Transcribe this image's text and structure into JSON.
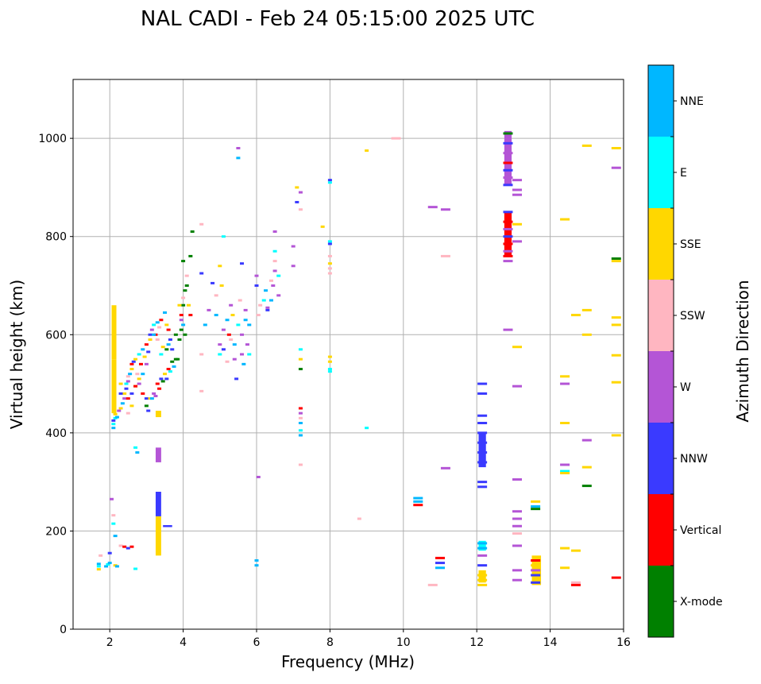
{
  "chart_data": {
    "type": "scatter",
    "title": "NAL CADI - Feb 24 05:15:00 2025 UTC",
    "xlabel": "Frequency (MHz)",
    "ylabel": "Virtual height (km)",
    "xlim": [
      1,
      16
    ],
    "ylim": [
      0,
      1120
    ],
    "xticks": [
      "2",
      "4",
      "6",
      "8",
      "10",
      "12",
      "14",
      "16"
    ],
    "yticks": [
      "0",
      "200",
      "400",
      "600",
      "800",
      "1000"
    ],
    "grid": true,
    "colorbar": {
      "label": "Azimuth Direction",
      "categories": [
        {
          "name": "X-mode",
          "color": "#008000"
        },
        {
          "name": "Vertical",
          "color": "#ff0000"
        },
        {
          "name": "NNW",
          "color": "#3a3aff"
        },
        {
          "name": "W",
          "color": "#b455d6"
        },
        {
          "name": "SSW",
          "color": "#ffb6c1"
        },
        {
          "name": "SSE",
          "color": "#ffd700"
        },
        {
          "name": "E",
          "color": "#00ffff"
        },
        {
          "name": "NNE",
          "color": "#00b7ff"
        }
      ]
    },
    "points": [
      [
        1.7,
        133,
        "NNE"
      ],
      [
        1.7,
        128,
        "E"
      ],
      [
        1.7,
        122,
        "SSE"
      ],
      [
        1.75,
        150,
        "SSW"
      ],
      [
        1.9,
        128,
        "NNE"
      ],
      [
        1.95,
        132,
        "E"
      ],
      [
        2.0,
        135,
        "NNE"
      ],
      [
        2.0,
        155,
        "NNW"
      ],
      [
        2.05,
        265,
        "W"
      ],
      [
        2.1,
        232,
        "SSW"
      ],
      [
        2.1,
        215,
        "E"
      ],
      [
        2.15,
        190,
        "NNE"
      ],
      [
        2.15,
        130,
        "SSE"
      ],
      [
        2.2,
        128,
        "NNE"
      ],
      [
        2.3,
        170,
        "SSW"
      ],
      [
        2.4,
        168,
        "Vertical"
      ],
      [
        2.5,
        165,
        "NNW"
      ],
      [
        2.6,
        168,
        "Vertical"
      ],
      [
        2.7,
        123,
        "E"
      ],
      [
        2.7,
        370,
        "E"
      ],
      [
        2.75,
        360,
        "NNE"
      ],
      [
        2.1,
        410,
        "NNE"
      ],
      [
        2.1,
        418,
        "E"
      ],
      [
        2.1,
        425,
        "NNW"
      ],
      [
        2.15,
        430,
        "E"
      ],
      [
        2.15,
        438,
        "SSE"
      ],
      [
        2.2,
        432,
        "NNE"
      ],
      [
        2.25,
        445,
        "W"
      ],
      [
        2.3,
        450,
        "SSE"
      ],
      [
        2.35,
        460,
        "NNE"
      ],
      [
        2.4,
        470,
        "W"
      ],
      [
        2.4,
        480,
        "SSE"
      ],
      [
        2.45,
        490,
        "NNW"
      ],
      [
        2.45,
        500,
        "E"
      ],
      [
        2.5,
        505,
        "W"
      ],
      [
        2.5,
        515,
        "SSW"
      ],
      [
        2.55,
        520,
        "NNE"
      ],
      [
        2.6,
        530,
        "SSE"
      ],
      [
        2.6,
        540,
        "Vertical"
      ],
      [
        2.65,
        545,
        "NNW"
      ],
      [
        2.7,
        550,
        "SSE"
      ],
      [
        2.75,
        520,
        "SSW"
      ],
      [
        2.8,
        560,
        "E"
      ],
      [
        2.85,
        540,
        "Vertical"
      ],
      [
        2.9,
        570,
        "NNE"
      ],
      [
        2.95,
        555,
        "SSE"
      ],
      [
        3.0,
        580,
        "Vertical"
      ],
      [
        3.05,
        565,
        "NNW"
      ],
      [
        3.1,
        590,
        "SSE"
      ],
      [
        3.1,
        600,
        "NNW"
      ],
      [
        3.15,
        610,
        "W"
      ],
      [
        3.2,
        620,
        "E"
      ],
      [
        3.25,
        600,
        "Vertical"
      ],
      [
        3.3,
        625,
        "NNE"
      ],
      [
        3.35,
        615,
        "SSW"
      ],
      [
        3.4,
        630,
        "Vertical"
      ],
      [
        3.5,
        645,
        "NNE"
      ],
      [
        3.55,
        620,
        "SSE"
      ],
      [
        3.6,
        610,
        "Vertical"
      ],
      [
        3.65,
        590,
        "NNW"
      ],
      [
        2.5,
        470,
        "Vertical"
      ],
      [
        2.6,
        480,
        "NNW"
      ],
      [
        2.7,
        495,
        "SSE"
      ],
      [
        2.8,
        500,
        "W"
      ],
      [
        2.9,
        480,
        "Vertical"
      ],
      [
        3.0,
        470,
        "NNW"
      ],
      [
        3.1,
        470,
        "SSE"
      ],
      [
        3.2,
        480,
        "W"
      ],
      [
        3.3,
        500,
        "Vertical"
      ],
      [
        3.4,
        510,
        "NNW"
      ],
      [
        3.5,
        520,
        "SSE"
      ],
      [
        3.6,
        530,
        "Vertical"
      ],
      [
        3.7,
        545,
        "X-mode"
      ],
      [
        3.7,
        570,
        "NNW"
      ],
      [
        3.8,
        600,
        "X-mode"
      ],
      [
        3.8,
        550,
        "X-mode"
      ],
      [
        3.6,
        580,
        "NNE"
      ],
      [
        3.4,
        560,
        "E"
      ],
      [
        3.3,
        590,
        "SSW"
      ],
      [
        3.2,
        600,
        "NNE"
      ],
      [
        3.0,
        540,
        "W"
      ],
      [
        2.9,
        520,
        "NNE"
      ],
      [
        2.8,
        510,
        "SSE"
      ],
      [
        2.7,
        495,
        "Vertical"
      ],
      [
        2.6,
        455,
        "SSE"
      ],
      [
        2.5,
        440,
        "SSW"
      ],
      [
        2.3,
        480,
        "NNW"
      ],
      [
        2.3,
        500,
        "SSE"
      ],
      [
        3.0,
        455,
        "X-mode"
      ],
      [
        3.05,
        445,
        "NNW"
      ],
      [
        3.15,
        470,
        "NNE"
      ],
      [
        3.25,
        475,
        "W"
      ],
      [
        3.35,
        490,
        "Vertical"
      ],
      [
        3.45,
        505,
        "X-mode"
      ],
      [
        3.55,
        510,
        "NNW"
      ],
      [
        3.65,
        525,
        "E"
      ],
      [
        3.75,
        535,
        "NNE"
      ],
      [
        3.85,
        550,
        "X-mode"
      ],
      [
        3.55,
        570,
        "X-mode"
      ],
      [
        3.45,
        575,
        "SSE"
      ],
      [
        3.9,
        590,
        "X-mode"
      ],
      [
        3.95,
        610,
        "X-mode"
      ],
      [
        3.95,
        640,
        "Vertical"
      ],
      [
        4.0,
        660,
        "X-mode"
      ],
      [
        4.0,
        675,
        "SSW"
      ],
      [
        4.05,
        690,
        "X-mode"
      ],
      [
        4.1,
        700,
        "X-mode"
      ],
      [
        4.15,
        660,
        "SSE"
      ],
      [
        4.2,
        640,
        "Vertical"
      ],
      [
        4.1,
        720,
        "SSW"
      ],
      [
        4.0,
        750,
        "X-mode"
      ],
      [
        4.2,
        760,
        "X-mode"
      ],
      [
        4.25,
        810,
        "X-mode"
      ],
      [
        3.95,
        630,
        "W"
      ],
      [
        3.9,
        660,
        "SSE"
      ],
      [
        4.0,
        620,
        "NNE"
      ],
      [
        4.05,
        600,
        "X-mode"
      ],
      [
        4.5,
        560,
        "SSW"
      ],
      [
        4.5,
        485,
        "SSW"
      ],
      [
        4.5,
        825,
        "SSW"
      ],
      [
        4.5,
        725,
        "NNW"
      ],
      [
        4.6,
        620,
        "NNE"
      ],
      [
        4.7,
        650,
        "W"
      ],
      [
        4.8,
        705,
        "NNW"
      ],
      [
        4.9,
        680,
        "SSW"
      ],
      [
        4.9,
        640,
        "NNE"
      ],
      [
        5.0,
        580,
        "W"
      ],
      [
        5.0,
        560,
        "E"
      ],
      [
        5.0,
        740,
        "SSE"
      ],
      [
        5.05,
        700,
        "SSE"
      ],
      [
        5.1,
        800,
        "E"
      ],
      [
        5.1,
        610,
        "W"
      ],
      [
        5.2,
        630,
        "NNE"
      ],
      [
        5.2,
        545,
        "SSW"
      ],
      [
        5.25,
        600,
        "Vertical"
      ],
      [
        5.3,
        660,
        "W"
      ],
      [
        5.35,
        640,
        "SSE"
      ],
      [
        5.4,
        580,
        "NNE"
      ],
      [
        5.4,
        550,
        "W"
      ],
      [
        5.45,
        510,
        "NNW"
      ],
      [
        5.5,
        620,
        "E"
      ],
      [
        5.55,
        670,
        "SSW"
      ],
      [
        5.6,
        560,
        "W"
      ],
      [
        5.6,
        600,
        "W"
      ],
      [
        5.65,
        540,
        "NNE"
      ],
      [
        5.7,
        630,
        "NNE"
      ],
      [
        5.7,
        650,
        "W"
      ],
      [
        5.75,
        580,
        "W"
      ],
      [
        5.8,
        620,
        "NNE"
      ],
      [
        5.8,
        560,
        "E"
      ],
      [
        5.5,
        960,
        "NNE"
      ],
      [
        5.5,
        980,
        "W"
      ],
      [
        5.6,
        745,
        "NNW"
      ],
      [
        5.3,
        590,
        "SSW"
      ],
      [
        5.1,
        570,
        "NNW"
      ],
      [
        6.0,
        720,
        "W"
      ],
      [
        6.0,
        700,
        "NNW"
      ],
      [
        6.05,
        640,
        "SSW"
      ],
      [
        6.05,
        310,
        "W"
      ],
      [
        6.0,
        140,
        "NNE"
      ],
      [
        6.0,
        130,
        "NNE"
      ],
      [
        6.1,
        660,
        "SSW"
      ],
      [
        6.2,
        670,
        "E"
      ],
      [
        6.25,
        690,
        "NNE"
      ],
      [
        6.3,
        650,
        "NNW"
      ],
      [
        6.4,
        670,
        "NNE"
      ],
      [
        6.45,
        700,
        "W"
      ],
      [
        6.5,
        730,
        "W"
      ],
      [
        6.5,
        750,
        "SSW"
      ],
      [
        6.5,
        770,
        "E"
      ],
      [
        6.6,
        720,
        "E"
      ],
      [
        6.6,
        680,
        "W"
      ],
      [
        6.5,
        810,
        "W"
      ],
      [
        6.3,
        655,
        "W"
      ],
      [
        6.4,
        710,
        "SSW"
      ],
      [
        7.0,
        740,
        "W"
      ],
      [
        7.0,
        780,
        "W"
      ],
      [
        7.1,
        870,
        "NNW"
      ],
      [
        7.1,
        900,
        "SSE"
      ],
      [
        7.2,
        855,
        "SSW"
      ],
      [
        7.2,
        890,
        "W"
      ],
      [
        7.2,
        570,
        "E"
      ],
      [
        7.2,
        550,
        "SSE"
      ],
      [
        7.2,
        530,
        "X-mode"
      ],
      [
        7.2,
        450,
        "Vertical"
      ],
      [
        7.2,
        440,
        "W"
      ],
      [
        7.2,
        430,
        "SSW"
      ],
      [
        7.2,
        420,
        "NNE"
      ],
      [
        7.2,
        405,
        "E"
      ],
      [
        7.2,
        395,
        "NNE"
      ],
      [
        7.2,
        335,
        "SSW"
      ],
      [
        7.8,
        820,
        "SSE"
      ],
      [
        8.0,
        915,
        "NNW"
      ],
      [
        8.0,
        910,
        "E"
      ],
      [
        8.0,
        790,
        "E"
      ],
      [
        8.0,
        785,
        "NNW"
      ],
      [
        8.0,
        760,
        "SSW"
      ],
      [
        8.0,
        745,
        "SSE"
      ],
      [
        8.0,
        735,
        "SSW"
      ],
      [
        8.0,
        725,
        "SSW"
      ],
      [
        8.0,
        555,
        "SSE"
      ],
      [
        8.0,
        545,
        "SSE"
      ],
      [
        8.0,
        530,
        "E"
      ],
      [
        8.0,
        525,
        "E"
      ],
      [
        9.0,
        975,
        "SSE"
      ],
      [
        9.0,
        410,
        "E"
      ],
      [
        8.8,
        225,
        "SSW"
      ],
      [
        9.8,
        1000,
        "SSW"
      ],
      [
        10.4,
        267,
        "NNE"
      ],
      [
        10.4,
        260,
        "NNE"
      ],
      [
        10.4,
        253,
        "Vertical"
      ],
      [
        10.8,
        860,
        "W"
      ],
      [
        10.8,
        90,
        "SSW"
      ],
      [
        11.0,
        145,
        "Vertical"
      ],
      [
        11.0,
        135,
        "NNW"
      ],
      [
        11.0,
        125,
        "NNE"
      ],
      [
        11.15,
        855,
        "W"
      ],
      [
        11.15,
        760,
        "SSW"
      ],
      [
        11.15,
        328,
        "W"
      ],
      [
        12.15,
        500,
        "NNW"
      ],
      [
        12.15,
        480,
        "NNW"
      ],
      [
        12.15,
        435,
        "NNW"
      ],
      [
        12.15,
        420,
        "NNW"
      ],
      [
        12.15,
        400,
        "NNW"
      ],
      [
        12.15,
        380,
        "NNW"
      ],
      [
        12.15,
        360,
        "NNW"
      ],
      [
        12.15,
        340,
        "NNW"
      ],
      [
        12.15,
        300,
        "NNW"
      ],
      [
        12.15,
        290,
        "NNW"
      ],
      [
        12.15,
        175,
        "NNE"
      ],
      [
        12.15,
        165,
        "NNE"
      ],
      [
        12.15,
        150,
        "W"
      ],
      [
        12.15,
        130,
        "NNW"
      ],
      [
        12.15,
        110,
        "SSE"
      ],
      [
        12.15,
        100,
        "SSE"
      ],
      [
        12.15,
        90,
        "SSE"
      ],
      [
        12.85,
        1010,
        "X-mode"
      ],
      [
        12.85,
        990,
        "NNW"
      ],
      [
        12.85,
        970,
        "W"
      ],
      [
        12.85,
        950,
        "Vertical"
      ],
      [
        12.85,
        935,
        "NNW"
      ],
      [
        12.85,
        920,
        "W"
      ],
      [
        12.85,
        905,
        "NNW"
      ],
      [
        12.85,
        850,
        "NNW"
      ],
      [
        12.85,
        830,
        "Vertical"
      ],
      [
        12.85,
        815,
        "W"
      ],
      [
        12.85,
        800,
        "NNW"
      ],
      [
        12.85,
        785,
        "Vertical"
      ],
      [
        12.85,
        770,
        "W"
      ],
      [
        12.85,
        760,
        "Vertical"
      ],
      [
        12.85,
        750,
        "W"
      ],
      [
        12.85,
        610,
        "W"
      ],
      [
        13.1,
        915,
        "W"
      ],
      [
        13.1,
        895,
        "W"
      ],
      [
        13.1,
        885,
        "W"
      ],
      [
        13.1,
        825,
        "SSE"
      ],
      [
        13.1,
        790,
        "W"
      ],
      [
        13.1,
        575,
        "SSE"
      ],
      [
        13.1,
        495,
        "W"
      ],
      [
        13.1,
        305,
        "W"
      ],
      [
        13.1,
        240,
        "W"
      ],
      [
        13.1,
        225,
        "W"
      ],
      [
        13.1,
        210,
        "W"
      ],
      [
        13.1,
        195,
        "SSW"
      ],
      [
        13.1,
        170,
        "W"
      ],
      [
        13.1,
        120,
        "W"
      ],
      [
        13.1,
        100,
        "W"
      ],
      [
        13.6,
        260,
        "SSE"
      ],
      [
        13.6,
        250,
        "NNE"
      ],
      [
        13.6,
        245,
        "X-mode"
      ],
      [
        13.6,
        140,
        "Vertical"
      ],
      [
        13.6,
        130,
        "SSE"
      ],
      [
        13.6,
        120,
        "W"
      ],
      [
        13.6,
        110,
        "NNW"
      ],
      [
        13.6,
        95,
        "NNW"
      ],
      [
        14.4,
        835,
        "SSE"
      ],
      [
        14.4,
        515,
        "SSE"
      ],
      [
        14.4,
        500,
        "W"
      ],
      [
        14.4,
        420,
        "SSE"
      ],
      [
        14.4,
        335,
        "W"
      ],
      [
        14.4,
        322,
        "E"
      ],
      [
        14.4,
        318,
        "SSE"
      ],
      [
        14.4,
        165,
        "SSE"
      ],
      [
        14.4,
        125,
        "SSE"
      ],
      [
        14.7,
        640,
        "SSE"
      ],
      [
        14.7,
        160,
        "SSE"
      ],
      [
        14.7,
        95,
        "SSW"
      ],
      [
        14.7,
        90,
        "Vertical"
      ],
      [
        15.0,
        985,
        "SSE"
      ],
      [
        15.0,
        650,
        "SSE"
      ],
      [
        15.0,
        600,
        "SSE"
      ],
      [
        15.0,
        385,
        "W"
      ],
      [
        15.0,
        330,
        "SSE"
      ],
      [
        15.0,
        292,
        "X-mode"
      ],
      [
        15.8,
        980,
        "SSE"
      ],
      [
        15.8,
        940,
        "W"
      ],
      [
        15.8,
        755,
        "X-mode"
      ],
      [
        15.8,
        750,
        "SSE"
      ],
      [
        15.8,
        635,
        "SSE"
      ],
      [
        15.8,
        620,
        "SSE"
      ],
      [
        15.8,
        558,
        "SSE"
      ],
      [
        15.8,
        503,
        "SSE"
      ],
      [
        15.8,
        395,
        "SSE"
      ],
      [
        15.8,
        105,
        "Vertical"
      ]
    ],
    "bands": [
      [
        2.05,
        2.18,
        550,
        660,
        "SSE"
      ],
      [
        2.05,
        2.18,
        440,
        550,
        "SSE"
      ],
      [
        3.25,
        3.4,
        150,
        230,
        "SSE"
      ],
      [
        3.25,
        3.4,
        340,
        370,
        "W"
      ],
      [
        3.25,
        3.4,
        432,
        445,
        "SSE"
      ],
      [
        3.25,
        3.4,
        230,
        280,
        "NNW"
      ],
      [
        3.45,
        3.7,
        208,
        212,
        "NNW"
      ],
      [
        12.05,
        12.25,
        330,
        400,
        "NNW"
      ],
      [
        12.05,
        12.25,
        95,
        120,
        "SSE"
      ],
      [
        12.05,
        12.25,
        160,
        180,
        "E"
      ],
      [
        12.75,
        12.95,
        905,
        1015,
        "W"
      ],
      [
        12.75,
        12.95,
        760,
        850,
        "Vertical"
      ],
      [
        13.5,
        13.75,
        90,
        150,
        "SSE"
      ]
    ]
  }
}
